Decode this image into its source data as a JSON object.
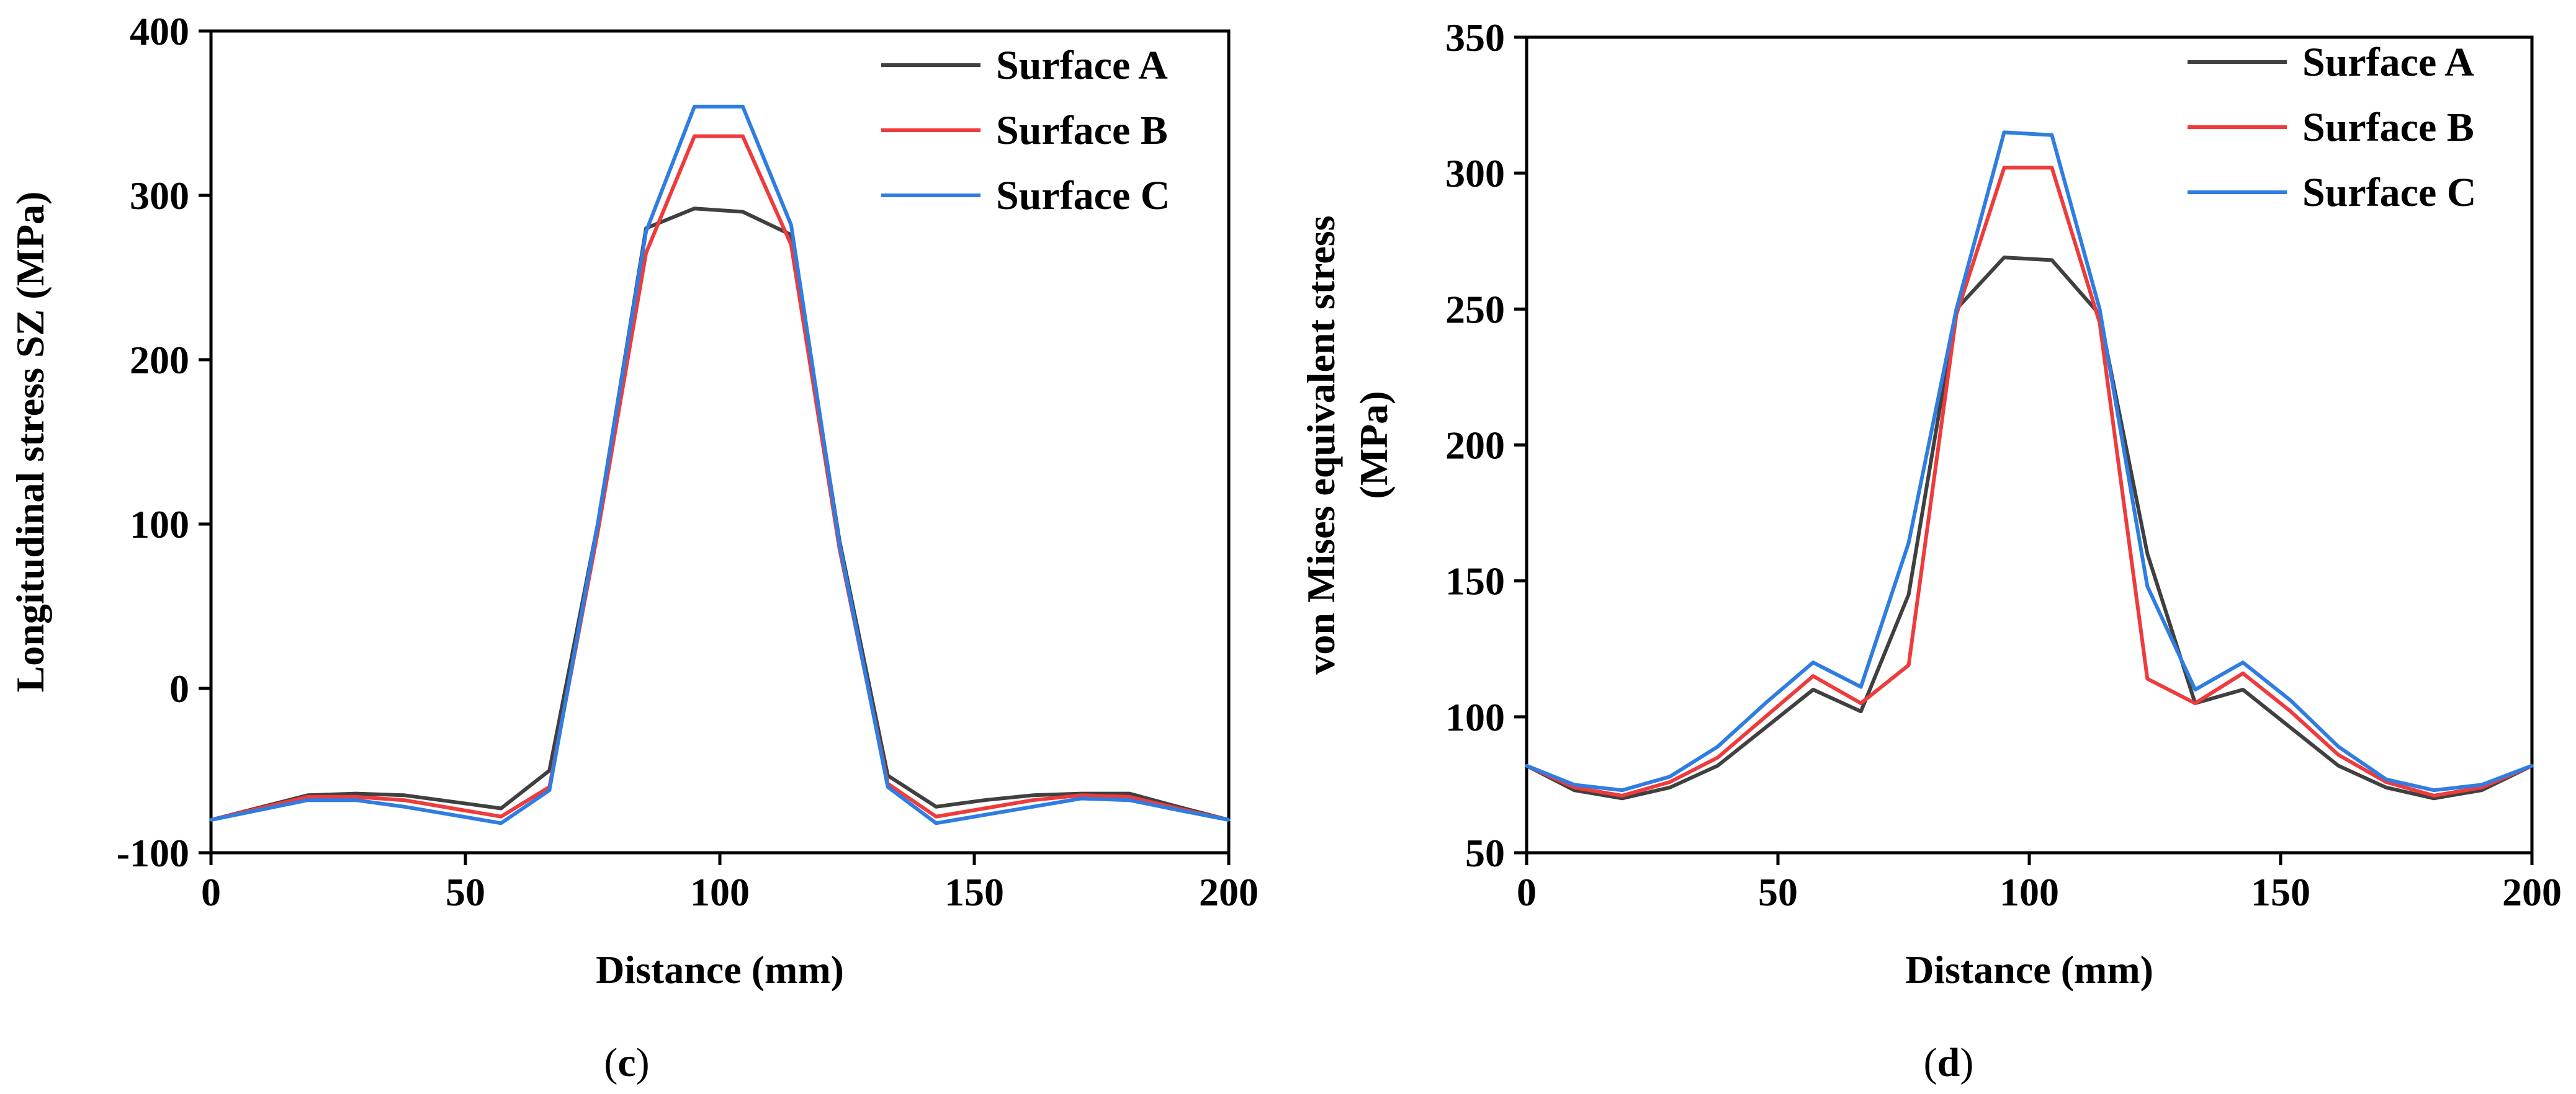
{
  "chart_data": [
    {
      "type": "line",
      "panel": "(c)",
      "panel_letter": "c",
      "xlabel": "Distance (mm)",
      "ylabel": "Longitudinal stress SZ (MPa)",
      "xlim": [
        0,
        200
      ],
      "ylim": [
        -100,
        400
      ],
      "xticks": [
        0,
        50,
        100,
        150,
        200
      ],
      "yticks": [
        -100,
        0,
        100,
        200,
        300,
        400
      ],
      "legend_position": "top-right",
      "x": [
        0,
        19,
        28.5,
        38,
        47.5,
        57,
        66.5,
        76,
        85.5,
        95,
        104.5,
        114,
        123.5,
        133,
        142.5,
        152,
        161.5,
        171,
        180.5,
        190,
        200
      ],
      "series": [
        {
          "name": "Surface A",
          "color": "#404040",
          "values": [
            -80,
            -65,
            -64,
            -65,
            -69,
            -73,
            -50,
            100,
            280,
            292,
            290,
            276,
            90,
            -53,
            -72,
            -68,
            -65,
            -64,
            -64,
            -72,
            -80
          ]
        },
        {
          "name": "Surface B",
          "color": "#ee3b3b",
          "values": [
            -80,
            -66,
            -66,
            -68,
            -73,
            -78,
            -60,
            95,
            265,
            336,
            336,
            270,
            85,
            -58,
            -78,
            -73,
            -68,
            -65,
            -66,
            -73,
            -80
          ]
        },
        {
          "name": "Surface C",
          "color": "#2f7de1",
          "values": [
            -80,
            -68,
            -68,
            -72,
            -77,
            -82,
            -62,
            100,
            278,
            354,
            354,
            282,
            88,
            -60,
            -82,
            -77,
            -72,
            -67,
            -68,
            -74,
            -80
          ]
        }
      ]
    },
    {
      "type": "line",
      "panel": "(d)",
      "panel_letter": "d",
      "xlabel": "Distance (mm)",
      "ylabel_line1": "von Mises equivalent stress",
      "ylabel_line2": "(MPa)",
      "xlim": [
        0,
        200
      ],
      "ylim": [
        50,
        350
      ],
      "xticks": [
        0,
        50,
        100,
        150,
        200
      ],
      "yticks": [
        50,
        100,
        150,
        200,
        250,
        300,
        350
      ],
      "legend_position": "top-right",
      "x": [
        0,
        9.5,
        19,
        28.5,
        38,
        47.5,
        57,
        66.5,
        76,
        85.5,
        95,
        104.5,
        114,
        123.5,
        133,
        142.5,
        152,
        161.5,
        171,
        180.5,
        190,
        200
      ],
      "series": [
        {
          "name": "Surface A",
          "color": "#404040",
          "values": [
            82,
            73,
            70,
            74,
            82,
            96,
            110,
            102,
            145,
            250,
            269,
            268,
            248,
            160,
            105,
            110,
            96,
            82,
            74,
            70,
            73,
            82
          ]
        },
        {
          "name": "Surface B",
          "color": "#ee3b3b",
          "values": [
            82,
            74,
            71,
            76,
            85,
            100,
            115,
            105,
            119,
            248,
            302,
            302,
            245,
            114,
            105,
            116,
            102,
            86,
            76,
            71,
            74,
            82
          ]
        },
        {
          "name": "Surface C",
          "color": "#2f7de1",
          "values": [
            82,
            75,
            73,
            78,
            89,
            105,
            120,
            111,
            164,
            250,
            315,
            314,
            250,
            148,
            110,
            120,
            106,
            89,
            77,
            73,
            75,
            82
          ]
        }
      ]
    }
  ]
}
